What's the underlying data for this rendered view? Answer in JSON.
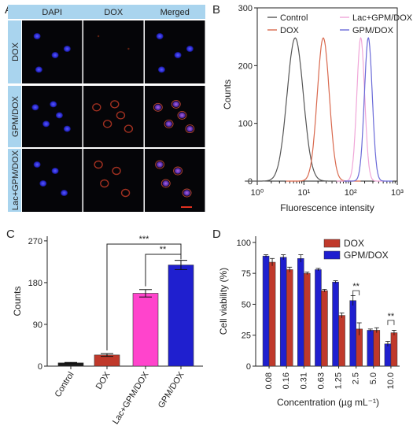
{
  "panels": {
    "A": {
      "label": "A",
      "columns": [
        "DAPI",
        "DOX",
        "Merged"
      ],
      "rows": [
        "DOX",
        "GPM/DOX",
        "Lac+GPM/DOX"
      ]
    }
  },
  "colors": {
    "header_bg": "#a9d4ee",
    "control": "#555555",
    "dox": "#d9694e",
    "lac": "#f0a6d8",
    "gpm": "#6a6ad8",
    "bar_control": "#1a1a1a",
    "bar_dox": "#c0392b",
    "bar_lac": "#ff44cc",
    "bar_gpm": "#1f1fcf",
    "viab_dox": "#c0392b",
    "viab_gpm": "#1f1fcf"
  },
  "chart_data": [
    {
      "panel": "B",
      "type": "line",
      "xscale": "log",
      "xlim": [
        1,
        1000
      ],
      "ylim": [
        0,
        300
      ],
      "xticks": [
        "10⁰",
        "10¹",
        "10²",
        "10³"
      ],
      "yticks": [
        0,
        100,
        200,
        300
      ],
      "xlabel": "Fluorescence intensity",
      "ylabel": "Counts",
      "legend_position": "top",
      "series": [
        {
          "name": "Control",
          "peak_x": 6.5,
          "peak_y": 248,
          "width_decades": 0.27
        },
        {
          "name": "DOX",
          "peak_x": 26,
          "peak_y": 248,
          "width_decades": 0.2
        },
        {
          "name": "Lac+GPM/DOX",
          "peak_x": 165,
          "peak_y": 248,
          "width_decades": 0.13
        },
        {
          "name": "GPM/DOX",
          "peak_x": 240,
          "peak_y": 248,
          "width_decades": 0.13
        }
      ]
    },
    {
      "panel": "C",
      "type": "bar",
      "categories": [
        "Control",
        "DOX",
        "Lac+GPM/DOX",
        "GPM/DOX"
      ],
      "values": [
        7,
        24,
        157,
        218
      ],
      "errors": [
        1,
        3,
        8,
        10
      ],
      "ylim": [
        0,
        280
      ],
      "yticks": [
        0,
        90,
        180,
        270
      ],
      "ylabel": "Counts",
      "annotations": [
        "***",
        "**"
      ]
    },
    {
      "panel": "D",
      "type": "bar",
      "categories": [
        "0.08",
        "0.16",
        "0.31",
        "0.63",
        "1.25",
        "2.5",
        "5.0",
        "10.0"
      ],
      "ylim": [
        0,
        105
      ],
      "yticks": [
        0,
        25,
        50,
        75,
        100
      ],
      "xlabel": "Concentration (µg mL⁻¹)",
      "ylabel": "Cell viability (%)",
      "legend_position": "top-right",
      "series": [
        {
          "name": "DOX",
          "values": [
            84,
            78,
            75,
            61,
            41,
            30,
            29,
            27
          ],
          "errors": [
            3,
            2,
            1,
            1,
            2,
            5,
            2,
            2
          ]
        },
        {
          "name": "GPM/DOX",
          "values": [
            89,
            88,
            87,
            78,
            68,
            53,
            29,
            18
          ],
          "errors": [
            1,
            2,
            3,
            1,
            1,
            4,
            1,
            2
          ]
        }
      ],
      "annotations": [
        "**",
        "**"
      ]
    }
  ]
}
